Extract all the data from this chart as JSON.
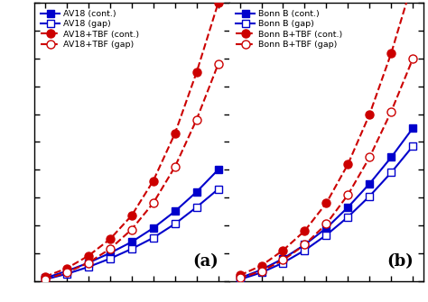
{
  "x": [
    0.04,
    0.08,
    0.12,
    0.16,
    0.2,
    0.24,
    0.28,
    0.32,
    0.36
  ],
  "panel_a": {
    "av18_cont": [
      1.0,
      3.5,
      6.5,
      10.0,
      14.0,
      19.0,
      25.0,
      32.0,
      40.0
    ],
    "av18_gap": [
      0.5,
      2.5,
      5.0,
      8.0,
      11.5,
      15.5,
      20.5,
      26.5,
      33.0
    ],
    "av18tbf_cont": [
      1.5,
      4.5,
      9.0,
      15.0,
      23.5,
      36.0,
      53.0,
      75.0,
      100.0
    ],
    "av18tbf_gap": [
      0.5,
      3.0,
      6.5,
      11.5,
      18.5,
      28.0,
      41.0,
      58.0,
      78.0
    ]
  },
  "panel_b": {
    "bonnb_cont": [
      1.0,
      4.0,
      8.0,
      13.0,
      19.0,
      26.5,
      35.0,
      44.5,
      55.0
    ],
    "bonnb_gap": [
      0.5,
      3.0,
      6.5,
      11.0,
      16.5,
      23.0,
      30.5,
      39.0,
      48.5
    ],
    "bonnbtbf_cont": [
      2.0,
      5.5,
      11.0,
      18.0,
      28.0,
      42.0,
      60.0,
      82.0,
      108.0
    ],
    "bonnbtbf_gap": [
      1.0,
      3.5,
      7.5,
      13.0,
      20.5,
      31.0,
      44.5,
      61.0,
      80.0
    ]
  },
  "blue": "#0000CC",
  "red": "#CC0000",
  "legend_a": [
    "AV18 (cont.)",
    "AV18 (gap)",
    "AV18+TBF (cont.)",
    "AV18+TBF (gap)"
  ],
  "legend_b": [
    "Bonn B (cont.)",
    "Bonn B (gap)",
    "Bonn B+TBF (cont.)",
    "Bonn B+TBF (gap)"
  ],
  "panel_labels": [
    "(a)",
    "(b)"
  ],
  "ylim": [
    0,
    100
  ],
  "xlim": [
    0.02,
    0.38
  ],
  "yticks": [
    0,
    10,
    20,
    30,
    40,
    50,
    60,
    70,
    80,
    90,
    100
  ],
  "xticks": [
    0.04,
    0.08,
    0.12,
    0.16,
    0.2,
    0.24,
    0.28,
    0.32,
    0.36
  ]
}
